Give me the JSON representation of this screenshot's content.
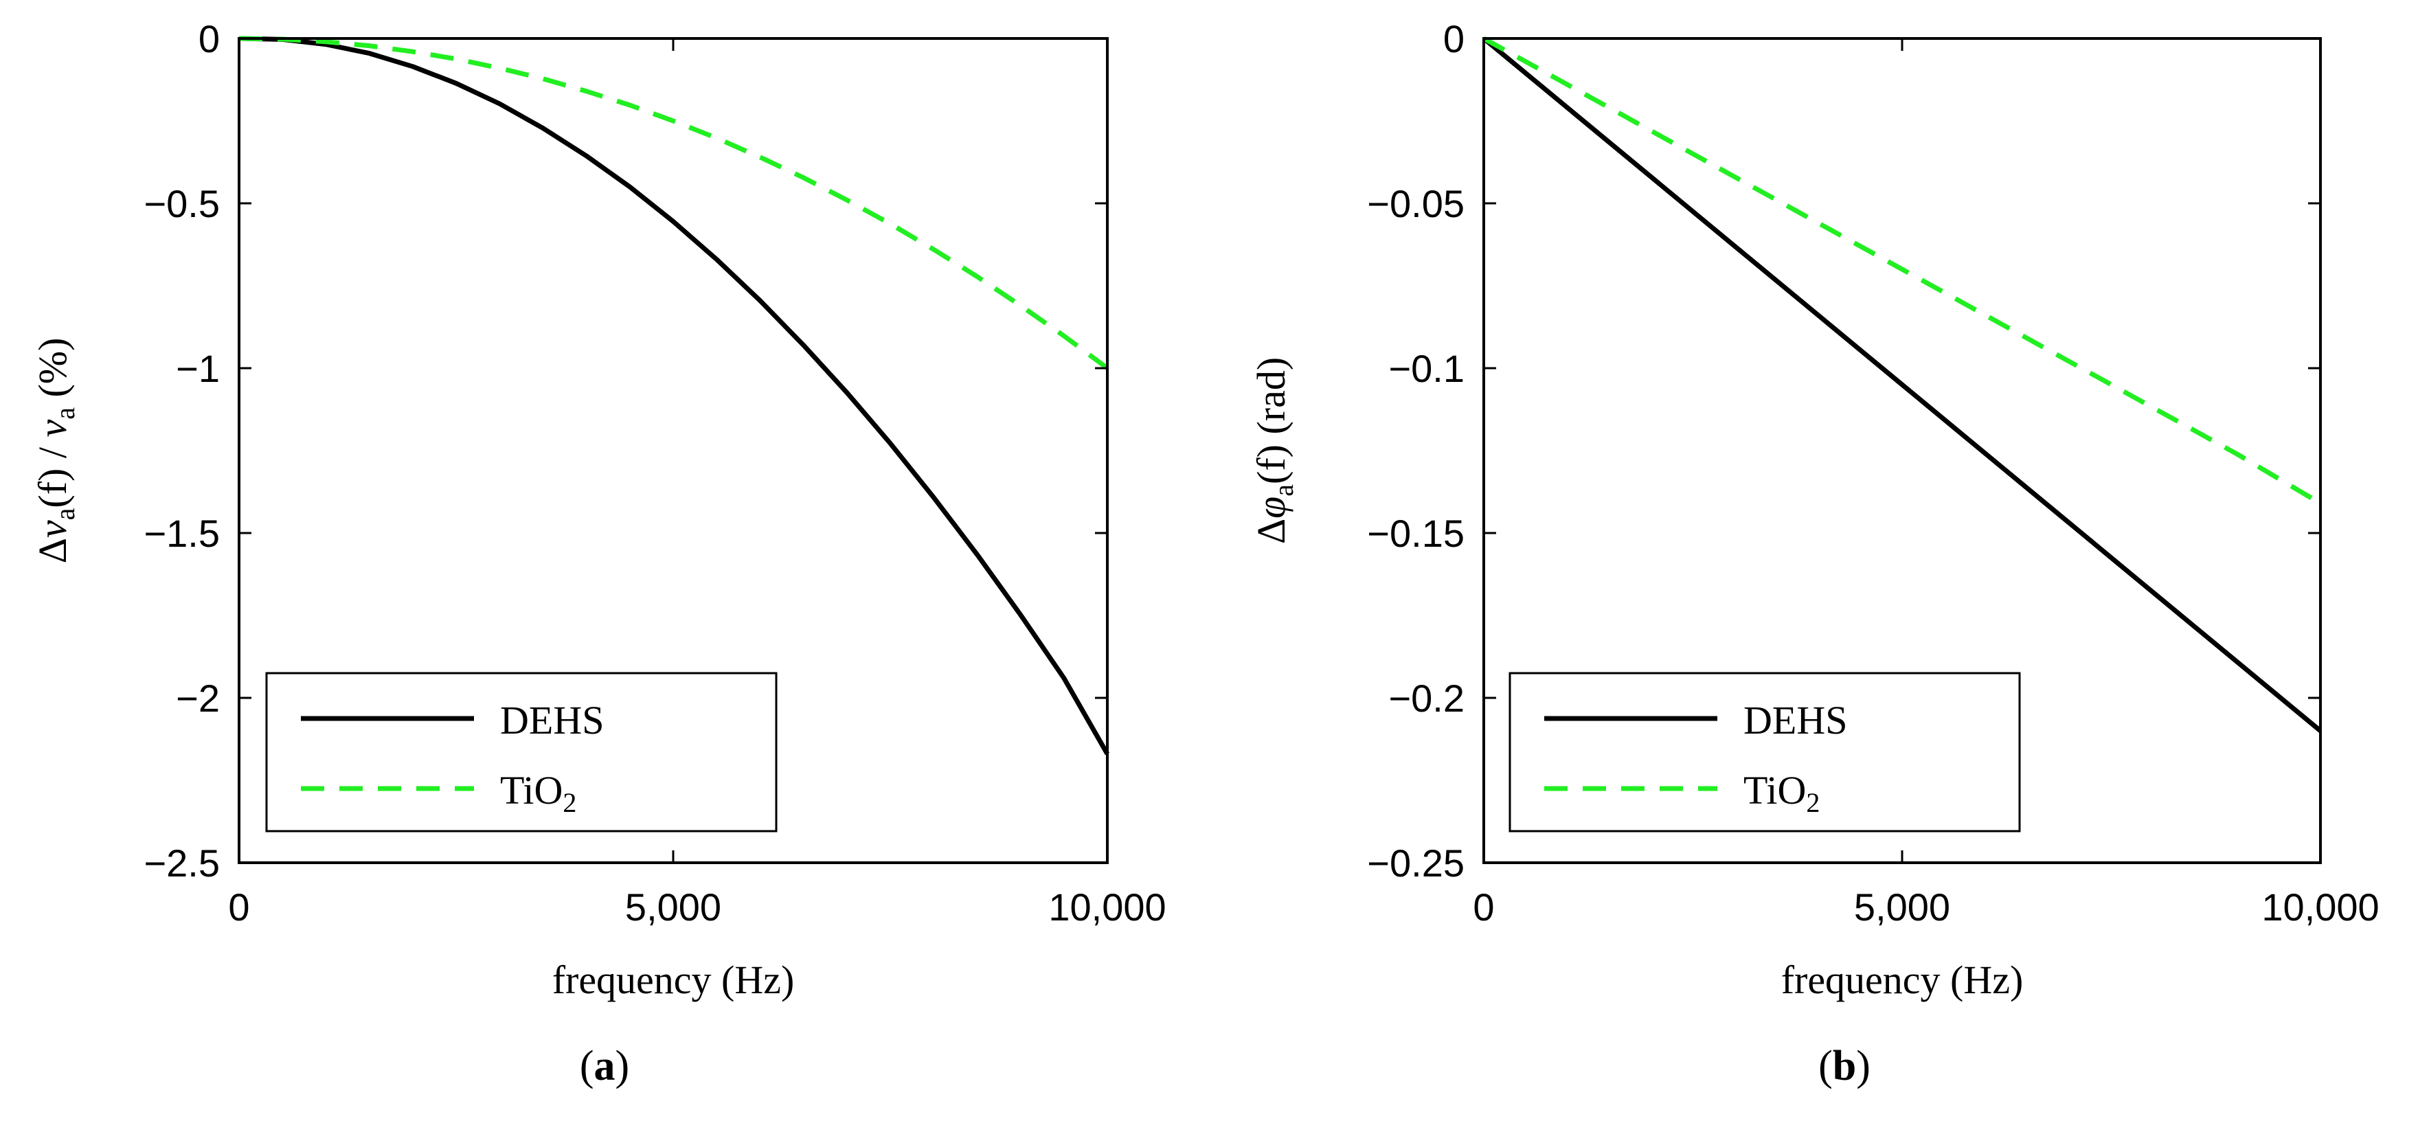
{
  "chart_data": [
    {
      "type": "line",
      "panel_label_open": "(",
      "panel_label_letter": "a",
      "panel_label_close": ")",
      "xlabel": "frequency (Hz)",
      "ylabel_delta": "Δ",
      "ylabel_v": "v",
      "ylabel_sub": "a",
      "ylabel_f": "(f) / ",
      "ylabel_v2": "v",
      "ylabel_sub2": "a",
      "ylabel_unit": " (%)",
      "xlim": [
        0,
        10000
      ],
      "ylim": [
        -2.5,
        0
      ],
      "xticks": [
        0,
        5000,
        10000
      ],
      "xtick_labels": [
        "0",
        "5,000",
        "10,000"
      ],
      "yticks": [
        0,
        -0.5,
        -1,
        -1.5,
        -2,
        -2.5
      ],
      "ytick_labels": [
        "0",
        "−0.5",
        "−1",
        "−1.5",
        "−2",
        "−2.5"
      ],
      "legend_position": "lower-left",
      "series": [
        {
          "name": "DEHS",
          "legend_main": "DEHS",
          "legend_sub": "",
          "color": "#000000",
          "style": "solid",
          "x": [
            0,
            500,
            1000,
            1500,
            2000,
            2500,
            3000,
            3500,
            4000,
            4500,
            5000,
            5500,
            6000,
            6500,
            7000,
            7500,
            8000,
            8500,
            9000,
            9500,
            10000
          ],
          "y": [
            0,
            -0.003,
            -0.018,
            -0.045,
            -0.085,
            -0.136,
            -0.198,
            -0.272,
            -0.356,
            -0.45,
            -0.555,
            -0.67,
            -0.795,
            -0.93,
            -1.074,
            -1.228,
            -1.392,
            -1.565,
            -1.748,
            -1.94,
            -2.17
          ]
        },
        {
          "name": "TiO2",
          "legend_main": "TiO",
          "legend_sub": "2",
          "color": "#22ee22",
          "style": "dashed",
          "x": [
            0,
            500,
            1000,
            1500,
            2000,
            2500,
            3000,
            3500,
            4000,
            4500,
            5000,
            5500,
            6000,
            6500,
            7000,
            7500,
            8000,
            8500,
            9000,
            9500,
            10000
          ],
          "y": [
            0,
            -0.002,
            -0.01,
            -0.022,
            -0.04,
            -0.062,
            -0.09,
            -0.122,
            -0.16,
            -0.202,
            -0.25,
            -0.302,
            -0.36,
            -0.422,
            -0.49,
            -0.562,
            -0.64,
            -0.722,
            -0.81,
            -0.902,
            -1.0
          ]
        }
      ]
    },
    {
      "type": "line",
      "panel_label_open": "(",
      "panel_label_letter": "b",
      "panel_label_close": ")",
      "xlabel": "frequency (Hz)",
      "ylabel_delta": "Δ",
      "ylabel_v": "φ",
      "ylabel_sub": "a",
      "ylabel_f": "(f)",
      "ylabel_v2": "",
      "ylabel_sub2": "",
      "ylabel_unit": " (rad)",
      "xlim": [
        0,
        10000
      ],
      "ylim": [
        -0.25,
        0
      ],
      "xticks": [
        0,
        5000,
        10000
      ],
      "xtick_labels": [
        "0",
        "5,000",
        "10,000"
      ],
      "yticks": [
        0,
        -0.05,
        -0.1,
        -0.15,
        -0.2,
        -0.25
      ],
      "ytick_labels": [
        "0",
        "−0.05",
        "−0.1",
        "−0.15",
        "−0.2",
        "−0.25"
      ],
      "legend_position": "lower-left",
      "series": [
        {
          "name": "DEHS",
          "legend_main": "DEHS",
          "legend_sub": "",
          "color": "#000000",
          "style": "solid",
          "x": [
            0,
            500,
            1000,
            2000,
            3000,
            4000,
            5000,
            6000,
            7000,
            8000,
            9000,
            10000
          ],
          "y": [
            0,
            -0.0105,
            -0.021,
            -0.042,
            -0.063,
            -0.084,
            -0.105,
            -0.126,
            -0.147,
            -0.168,
            -0.189,
            -0.21
          ]
        },
        {
          "name": "TiO2",
          "legend_main": "TiO",
          "legend_sub": "2",
          "color": "#22ee22",
          "style": "dashed",
          "x": [
            0,
            500,
            1000,
            2000,
            3000,
            4000,
            5000,
            6000,
            7000,
            8000,
            9000,
            10000
          ],
          "y": [
            0,
            -0.007,
            -0.014,
            -0.028,
            -0.042,
            -0.056,
            -0.07,
            -0.084,
            -0.098,
            -0.112,
            -0.126,
            -0.141
          ]
        }
      ]
    }
  ]
}
